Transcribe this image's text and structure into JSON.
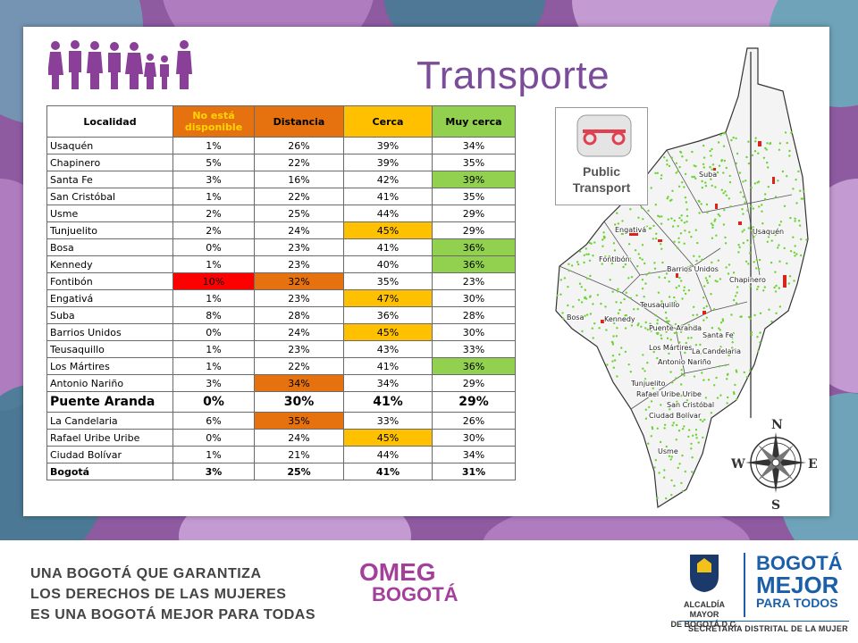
{
  "slide": {
    "title": "Transporte"
  },
  "table": {
    "headers": [
      "Localidad",
      "No está disponible",
      "Distancia",
      "Cerca",
      "Muy cerca"
    ],
    "rows": [
      {
        "name": "Usaquén",
        "vals": [
          "1%",
          "26%",
          "39%",
          "34%"
        ],
        "hl": [
          null,
          null,
          null,
          null
        ]
      },
      {
        "name": "Chapinero",
        "vals": [
          "5%",
          "22%",
          "39%",
          "35%"
        ],
        "hl": [
          null,
          null,
          null,
          null
        ]
      },
      {
        "name": "Santa Fe",
        "vals": [
          "3%",
          "16%",
          "42%",
          "39%"
        ],
        "hl": [
          null,
          null,
          null,
          "#92d050"
        ]
      },
      {
        "name": "San Cristóbal",
        "vals": [
          "1%",
          "22%",
          "41%",
          "35%"
        ],
        "hl": [
          null,
          null,
          null,
          null
        ]
      },
      {
        "name": "Usme",
        "vals": [
          "2%",
          "25%",
          "44%",
          "29%"
        ],
        "hl": [
          null,
          null,
          null,
          null
        ]
      },
      {
        "name": "Tunjuelito",
        "vals": [
          "2%",
          "24%",
          "45%",
          "29%"
        ],
        "hl": [
          null,
          null,
          "#ffc000",
          null
        ]
      },
      {
        "name": "Bosa",
        "vals": [
          "0%",
          "23%",
          "41%",
          "36%"
        ],
        "hl": [
          null,
          null,
          null,
          "#92d050"
        ]
      },
      {
        "name": "Kennedy",
        "vals": [
          "1%",
          "23%",
          "40%",
          "36%"
        ],
        "hl": [
          null,
          null,
          null,
          "#92d050"
        ]
      },
      {
        "name": "Fontibón",
        "vals": [
          "10%",
          "32%",
          "35%",
          "23%"
        ],
        "hl": [
          "#ff0000",
          "#e6720f",
          null,
          null
        ]
      },
      {
        "name": "Engativá",
        "vals": [
          "1%",
          "23%",
          "47%",
          "30%"
        ],
        "hl": [
          null,
          null,
          "#ffc000",
          null
        ]
      },
      {
        "name": "Suba",
        "vals": [
          "8%",
          "28%",
          "36%",
          "28%"
        ],
        "hl": [
          null,
          null,
          null,
          null
        ]
      },
      {
        "name": "Barrios Unidos",
        "vals": [
          "0%",
          "24%",
          "45%",
          "30%"
        ],
        "hl": [
          null,
          null,
          "#ffc000",
          null
        ]
      },
      {
        "name": "Teusaquillo",
        "vals": [
          "1%",
          "23%",
          "43%",
          "33%"
        ],
        "hl": [
          null,
          null,
          null,
          null
        ]
      },
      {
        "name": "Los Mártires",
        "vals": [
          "1%",
          "22%",
          "41%",
          "36%"
        ],
        "hl": [
          null,
          null,
          null,
          "#92d050"
        ]
      },
      {
        "name": "Antonio Nariño",
        "vals": [
          "3%",
          "34%",
          "34%",
          "29%"
        ],
        "hl": [
          null,
          "#e6720f",
          null,
          null
        ]
      },
      {
        "name": "Puente Aranda",
        "vals": [
          "0%",
          "30%",
          "41%",
          "29%"
        ],
        "hl": [
          null,
          null,
          null,
          null
        ],
        "style": "big"
      },
      {
        "name": "La Candelaria",
        "vals": [
          "6%",
          "35%",
          "33%",
          "26%"
        ],
        "hl": [
          null,
          "#e6720f",
          null,
          null
        ]
      },
      {
        "name": "Rafael Uribe Uribe",
        "vals": [
          "0%",
          "24%",
          "45%",
          "30%"
        ],
        "hl": [
          null,
          null,
          "#ffc000",
          null
        ]
      },
      {
        "name": "Ciudad Bolívar",
        "vals": [
          "1%",
          "21%",
          "44%",
          "34%"
        ],
        "hl": [
          null,
          null,
          null,
          null
        ]
      },
      {
        "name": "Bogotá",
        "vals": [
          "3%",
          "25%",
          "41%",
          "31%"
        ],
        "hl": [
          null,
          null,
          null,
          null
        ],
        "style": "bold"
      }
    ]
  },
  "map": {
    "public_transport_label_1": "Public",
    "public_transport_label_2": "Transport",
    "labels": [
      "Suba",
      "Engativá",
      "Usaquén",
      "Fontibón",
      "Barrios Unidos",
      "Chapinero",
      "Teusaquillo",
      "Bosa",
      "Kennedy",
      "Puente Aranda",
      "Santa Fe",
      "Los Mártires",
      "La Candelaria",
      "Antonio Nariño",
      "Tunjuelito",
      "Rafael Uribe Uribe",
      "San Cristóbal",
      "Ciudad Bolívar",
      "Usme"
    ],
    "compass": {
      "n": "N",
      "s": "S",
      "e": "E",
      "w": "W"
    }
  },
  "footer": {
    "slogan_1": "UNA BOGOTÁ QUE GARANTIZA",
    "slogan_2": "LOS DERECHOS DE LAS MUJERES",
    "slogan_3": "ES UNA BOGOTÁ MEJOR PARA TODAS",
    "omeg_1": "OMEG",
    "omeg_2": "BOGOTÁ",
    "alcaldia_1": "ALCALDÍA MAYOR",
    "alcaldia_2": "DE BOGOTÁ D.C.",
    "bmpt_1": "BOGOTÁ",
    "bmpt_2": "MEJOR",
    "bmpt_3": "PARA TODOS",
    "secretaria": "SECRETARÍA DISTRITAL DE LA MUJER"
  },
  "colors": {
    "title": "#7a4c9a",
    "background": "#8e5aa0",
    "orange": "#e6720f",
    "amber": "#ffc000",
    "green": "#92d050",
    "red": "#ff0000",
    "brand_blue": "#1b5fa8",
    "omeg_magenta": "#a53f9c"
  }
}
